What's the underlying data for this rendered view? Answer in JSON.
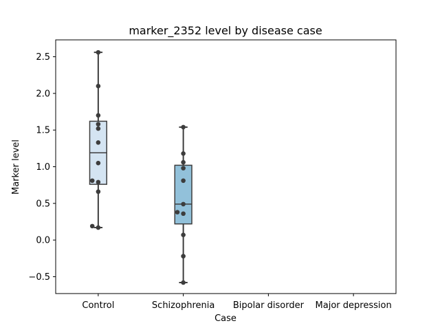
{
  "chart_data": {
    "type": "box",
    "title": "marker_2352 level by disease case",
    "xlabel": "Case",
    "ylabel": "Marker level",
    "categories": [
      "Control",
      "Schizophrenia",
      "Bipolar disorder",
      "Major depression"
    ],
    "ylim": [
      -0.73,
      2.73
    ],
    "yticks": [
      -0.5,
      0.0,
      0.5,
      1.0,
      1.5,
      2.0,
      2.5
    ],
    "ytick_labels": [
      "−0.5",
      "0.0",
      "0.5",
      "1.0",
      "1.5",
      "2.0",
      "2.5"
    ],
    "grid": false,
    "boxes": [
      {
        "category": "Control",
        "whisker_low": 0.17,
        "q1": 0.76,
        "median": 1.19,
        "q3": 1.62,
        "whisker_high": 2.56,
        "color": "#d4e4f2"
      },
      {
        "category": "Schizophrenia",
        "whisker_low": -0.58,
        "q1": 0.22,
        "median": 0.49,
        "q3": 1.02,
        "whisker_high": 1.54,
        "color": "#92c1da"
      }
    ],
    "points": [
      {
        "category": "Control",
        "values": [
          2.56,
          2.1,
          1.7,
          1.58,
          1.52,
          1.33,
          1.05,
          0.81,
          0.79,
          0.66,
          0.19,
          0.17
        ],
        "offsets": [
          0,
          0,
          0,
          0,
          0,
          0,
          0,
          -0.1,
          0,
          0,
          -0.1,
          0
        ]
      },
      {
        "category": "Schizophrenia",
        "values": [
          1.54,
          1.18,
          1.06,
          0.98,
          0.81,
          0.49,
          0.38,
          0.36,
          0.07,
          -0.22,
          -0.58
        ],
        "offsets": [
          0,
          0,
          0,
          0,
          0,
          0,
          -0.1,
          0,
          0,
          0,
          0
        ]
      }
    ],
    "colors": {
      "box_edge": "#3d3d3d",
      "point": "#3d3d3d",
      "axes": "#000000"
    }
  }
}
